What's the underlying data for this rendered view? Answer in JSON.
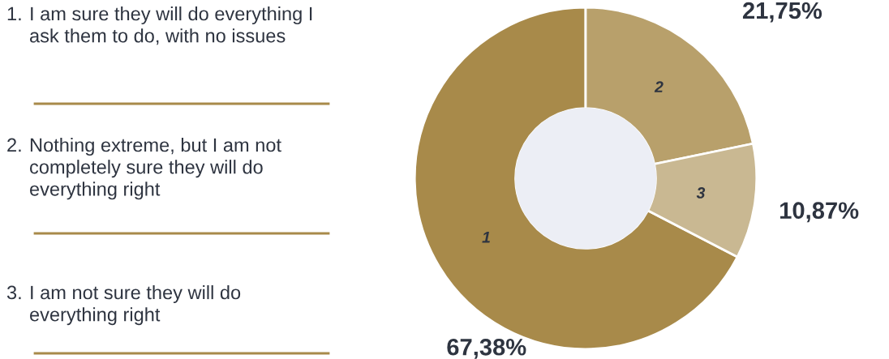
{
  "chart_data": {
    "type": "donut",
    "categories": [
      "1",
      "2",
      "3"
    ],
    "values": [
      67.38,
      21.75,
      10.87
    ],
    "colors": [
      "#a88a4a",
      "#b8a06b",
      "#c9b892"
    ],
    "value_labels": [
      "67,38%",
      "21,75%",
      "10,87%"
    ],
    "annotations": [
      "1. I am sure they will do everything I ask them to do, with no issues",
      "2. Nothing extreme, but I am not completely sure they will do everything right",
      "3. I am not sure they will do everything right"
    ]
  }
}
